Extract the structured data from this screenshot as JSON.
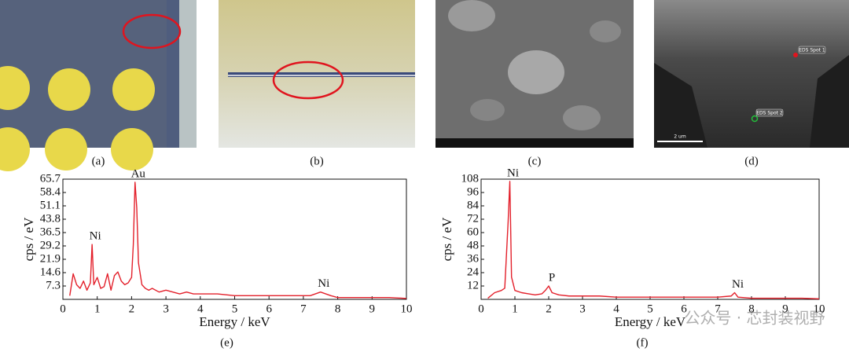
{
  "panels": [
    {
      "caption": "(a)"
    },
    {
      "caption": "(b)"
    },
    {
      "caption": "(c)"
    },
    {
      "caption": "(d)",
      "labels": [
        "EDS Spot 1",
        "EDS Spot 2",
        "2 um"
      ]
    }
  ],
  "chart_data": [
    {
      "type": "line",
      "caption": "(e)",
      "x_label": "Energy / keV",
      "y_label": "cps / eV",
      "color": "#e3202b",
      "xlim": [
        0,
        10
      ],
      "xticks": [
        0,
        1,
        2,
        3,
        4,
        5,
        6,
        7,
        8,
        9,
        10
      ],
      "ylim": [
        0,
        65.7
      ],
      "yticks": [
        7.3,
        14.6,
        21.9,
        29.2,
        36.5,
        43.8,
        51.1,
        58.4,
        65.7
      ],
      "x": [
        0.2,
        0.3,
        0.4,
        0.5,
        0.6,
        0.7,
        0.8,
        0.85,
        0.9,
        1.0,
        1.1,
        1.2,
        1.3,
        1.4,
        1.5,
        1.6,
        1.7,
        1.8,
        1.9,
        2.0,
        2.05,
        2.1,
        2.15,
        2.2,
        2.3,
        2.4,
        2.5,
        2.6,
        2.8,
        3.0,
        3.2,
        3.4,
        3.6,
        3.8,
        4.0,
        4.5,
        5.0,
        5.5,
        6.0,
        6.5,
        7.0,
        7.2,
        7.5,
        7.8,
        8.0,
        8.5,
        9.0,
        9.5,
        10.0
      ],
      "values": [
        2,
        14,
        8,
        6,
        10,
        5,
        9,
        30,
        8,
        12,
        6,
        7,
        14,
        5,
        13,
        15,
        10,
        8,
        9,
        12,
        30,
        64,
        50,
        20,
        8,
        6,
        5,
        6,
        4,
        5,
        4,
        3,
        4,
        3,
        3,
        3,
        2,
        2,
        2,
        2,
        2,
        2,
        4,
        2,
        1,
        1,
        1,
        1,
        0.5
      ],
      "annotations": [
        {
          "text": "Ni",
          "x": 0.85,
          "y": 30
        },
        {
          "text": "Au",
          "x": 2.1,
          "y": 64
        },
        {
          "text": "Ni",
          "x": 7.5,
          "y": 4
        }
      ]
    },
    {
      "type": "line",
      "caption": "(f)",
      "x_label": "Energy / keV",
      "y_label": "cps / eV",
      "color": "#e3202b",
      "xlim": [
        0,
        10
      ],
      "xticks": [
        0,
        1,
        2,
        3,
        4,
        5,
        6,
        7,
        8,
        9,
        10
      ],
      "ylim": [
        0,
        108
      ],
      "yticks": [
        12,
        24,
        36,
        48,
        60,
        72,
        84,
        96,
        108
      ],
      "x": [
        0.2,
        0.4,
        0.6,
        0.7,
        0.75,
        0.8,
        0.85,
        0.9,
        1.0,
        1.2,
        1.4,
        1.6,
        1.8,
        1.9,
        2.0,
        2.1,
        2.3,
        2.6,
        3.0,
        3.5,
        4.0,
        4.5,
        5.0,
        5.5,
        6.0,
        6.5,
        7.0,
        7.4,
        7.5,
        7.6,
        8.0,
        8.5,
        9.0,
        9.5,
        10.0
      ],
      "values": [
        1,
        6,
        8,
        10,
        40,
        70,
        106,
        20,
        8,
        6,
        5,
        4,
        5,
        8,
        12,
        6,
        4,
        3,
        3,
        3,
        2,
        2,
        2,
        2,
        2,
        2,
        2,
        3,
        6,
        2,
        1,
        1,
        1,
        1,
        0.5
      ],
      "annotations": [
        {
          "text": "Ni",
          "x": 0.85,
          "y": 106
        },
        {
          "text": "P",
          "x": 2.0,
          "y": 12
        },
        {
          "text": "Ni",
          "x": 7.5,
          "y": 6
        }
      ]
    }
  ],
  "watermark": "公众号 · 芯封装视野"
}
